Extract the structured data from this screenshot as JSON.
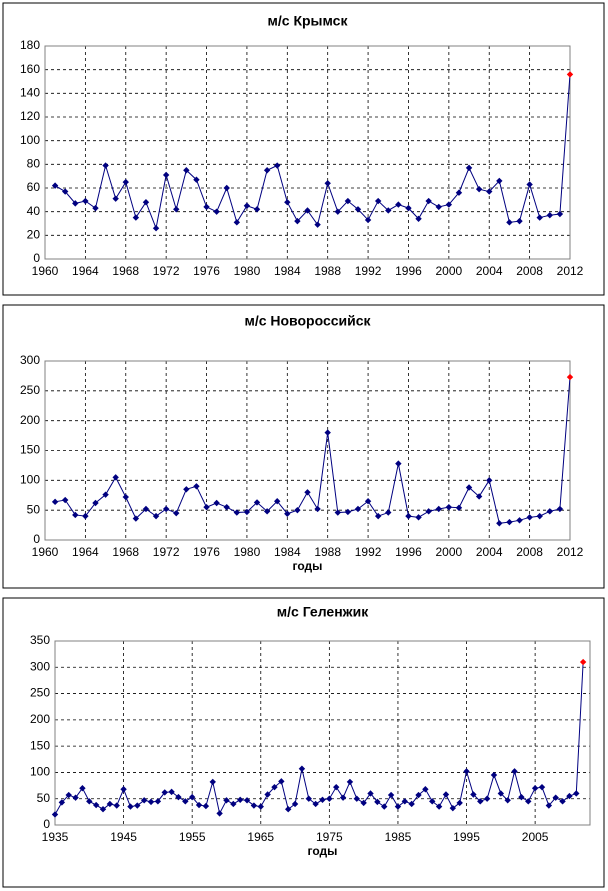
{
  "chart_data": [
    {
      "type": "line",
      "title": "м/с Крымск",
      "color": "#000080",
      "last_point_color": "#ff0000",
      "grid": true,
      "x": [
        1961,
        1962,
        1963,
        1964,
        1965,
        1966,
        1967,
        1968,
        1969,
        1970,
        1971,
        1972,
        1973,
        1974,
        1975,
        1976,
        1977,
        1978,
        1979,
        1980,
        1981,
        1982,
        1983,
        1984,
        1985,
        1986,
        1987,
        1988,
        1989,
        1990,
        1991,
        1992,
        1993,
        1994,
        1995,
        1996,
        1997,
        1998,
        1999,
        2000,
        2001,
        2002,
        2003,
        2004,
        2005,
        2006,
        2007,
        2008,
        2009,
        2010,
        2011,
        2012
      ],
      "values": [
        62,
        57,
        47,
        49,
        43,
        79,
        51,
        65,
        35,
        48,
        26,
        71,
        42,
        75,
        67,
        44,
        40,
        60,
        31,
        45,
        42,
        75,
        79,
        48,
        32,
        41,
        29,
        64,
        40,
        49,
        42,
        33,
        49,
        41,
        46,
        43,
        34,
        49,
        44,
        46,
        56,
        77,
        59,
        57,
        66,
        31,
        32,
        63,
        35,
        37,
        38,
        156
      ],
      "xlim": [
        1960,
        2012
      ],
      "xticks": [
        1960,
        1964,
        1968,
        1972,
        1976,
        1980,
        1984,
        1988,
        1992,
        1996,
        2000,
        2004,
        2008,
        2012
      ],
      "ylim": [
        0,
        180
      ],
      "yticks": [
        0,
        20,
        40,
        60,
        80,
        100,
        120,
        140,
        160,
        180
      ]
    },
    {
      "type": "line",
      "title": "м/с Новороссийск",
      "x_label": "годы",
      "color": "#000080",
      "last_point_color": "#ff0000",
      "grid": true,
      "x": [
        1961,
        1962,
        1963,
        1964,
        1965,
        1966,
        1967,
        1968,
        1969,
        1970,
        1971,
        1972,
        1973,
        1974,
        1975,
        1976,
        1977,
        1978,
        1979,
        1980,
        1981,
        1982,
        1983,
        1984,
        1985,
        1986,
        1987,
        1988,
        1989,
        1990,
        1991,
        1992,
        1993,
        1994,
        1995,
        1996,
        1997,
        1998,
        1999,
        2000,
        2001,
        2002,
        2003,
        2004,
        2005,
        2006,
        2007,
        2008,
        2009,
        2010,
        2011,
        2012
      ],
      "values": [
        64,
        67,
        42,
        40,
        62,
        76,
        105,
        72,
        36,
        52,
        40,
        52,
        45,
        85,
        90,
        55,
        62,
        55,
        46,
        47,
        63,
        48,
        65,
        44,
        50,
        80,
        52,
        180,
        46,
        47,
        52,
        65,
        40,
        46,
        128,
        40,
        38,
        48,
        52,
        55,
        54,
        88,
        73,
        100,
        28,
        30,
        33,
        38,
        40,
        48,
        52,
        273
      ],
      "xlim": [
        1960,
        2012
      ],
      "xticks": [
        1960,
        1964,
        1968,
        1972,
        1976,
        1980,
        1984,
        1988,
        1992,
        1996,
        2000,
        2004,
        2008,
        2012
      ],
      "ylim": [
        0,
        300
      ],
      "yticks": [
        0,
        50,
        100,
        150,
        200,
        250,
        300
      ]
    },
    {
      "type": "line",
      "title": "м/с Геленжик",
      "x_label": "годы",
      "color": "#000080",
      "last_point_color": "#ff0000",
      "grid": true,
      "x": [
        1935,
        1936,
        1937,
        1938,
        1939,
        1940,
        1941,
        1942,
        1943,
        1944,
        1945,
        1946,
        1947,
        1948,
        1949,
        1950,
        1951,
        1952,
        1953,
        1954,
        1955,
        1956,
        1957,
        1958,
        1959,
        1960,
        1961,
        1962,
        1963,
        1964,
        1965,
        1966,
        1967,
        1968,
        1969,
        1970,
        1971,
        1972,
        1973,
        1974,
        1975,
        1976,
        1977,
        1978,
        1979,
        1980,
        1981,
        1982,
        1983,
        1984,
        1985,
        1986,
        1987,
        1988,
        1989,
        1990,
        1991,
        1992,
        1993,
        1994,
        1995,
        1996,
        1997,
        1998,
        1999,
        2000,
        2001,
        2002,
        2003,
        2004,
        2005,
        2006,
        2007,
        2008,
        2009,
        2010,
        2011,
        2012
      ],
      "values": [
        20,
        43,
        57,
        52,
        70,
        45,
        38,
        30,
        40,
        37,
        68,
        35,
        37,
        47,
        44,
        45,
        62,
        63,
        53,
        45,
        53,
        38,
        36,
        82,
        22,
        47,
        40,
        48,
        47,
        37,
        35,
        58,
        72,
        83,
        30,
        40,
        107,
        50,
        40,
        48,
        50,
        72,
        52,
        82,
        50,
        42,
        60,
        44,
        35,
        57,
        35,
        45,
        40,
        57,
        68,
        45,
        35,
        58,
        32,
        42,
        102,
        58,
        45,
        50,
        95,
        60,
        47,
        102,
        53,
        45,
        70,
        72,
        37,
        52,
        45,
        55,
        60,
        310
      ],
      "xlim": [
        1935,
        2013
      ],
      "xticks": [
        1935,
        1945,
        1955,
        1965,
        1975,
        1985,
        1995,
        2005
      ],
      "ylim": [
        0,
        350
      ],
      "yticks": [
        0,
        50,
        100,
        150,
        200,
        250,
        300,
        350
      ]
    }
  ]
}
